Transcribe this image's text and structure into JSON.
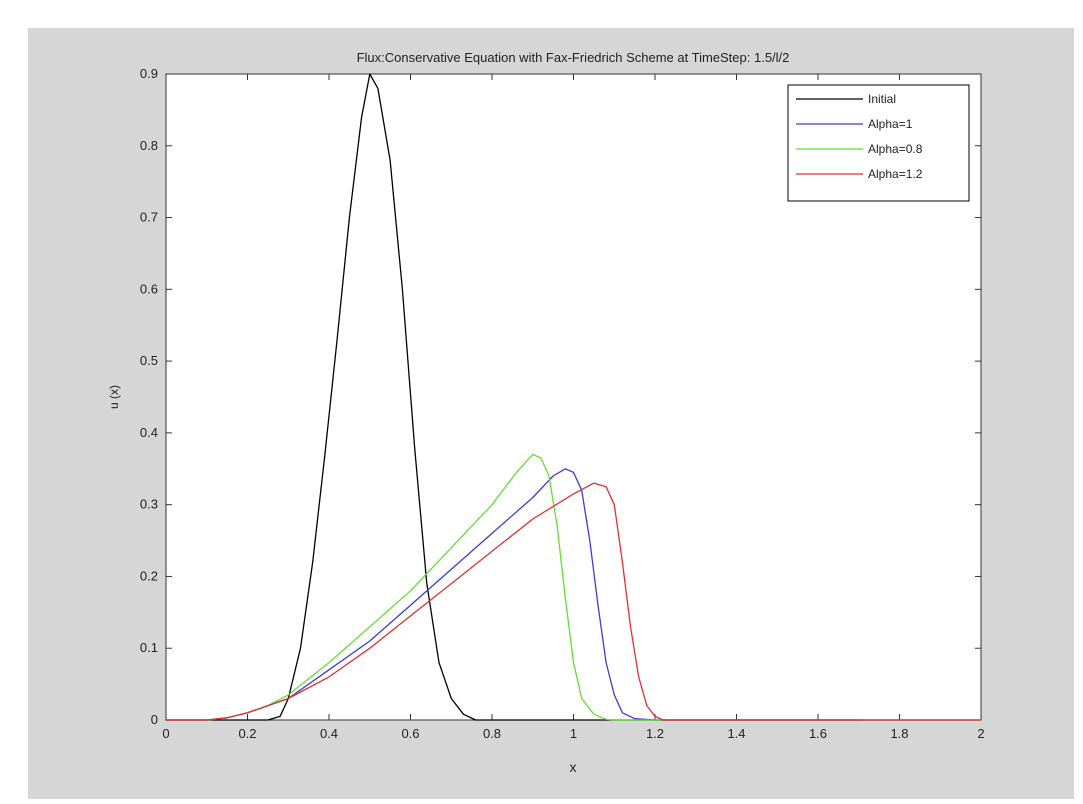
{
  "chart_data": {
    "type": "line",
    "title": "Flux:Conservative Equation with Fax-Friedrich Scheme at TimeStep: 1.5/l/2",
    "xlabel": "x",
    "ylabel": "u (x)",
    "xlim": [
      0,
      2
    ],
    "ylim": [
      0,
      0.9
    ],
    "xticks": [
      "0",
      "0.2",
      "0.4",
      "0.6",
      "0.8",
      "1",
      "1.2",
      "1.4",
      "1.6",
      "1.8",
      "2"
    ],
    "yticks": [
      "0",
      "0.1",
      "0.2",
      "0.3",
      "0.4",
      "0.5",
      "0.6",
      "0.7",
      "0.8",
      "0.9"
    ],
    "grid": false,
    "legend_position": "top-right",
    "series": [
      {
        "name": "Initial",
        "color": "#000000",
        "points": [
          [
            0,
            0
          ],
          [
            0.25,
            0
          ],
          [
            0.28,
            0.005
          ],
          [
            0.3,
            0.03
          ],
          [
            0.33,
            0.1
          ],
          [
            0.36,
            0.22
          ],
          [
            0.39,
            0.37
          ],
          [
            0.42,
            0.53
          ],
          [
            0.45,
            0.7
          ],
          [
            0.48,
            0.84
          ],
          [
            0.5,
            0.9
          ],
          [
            0.52,
            0.88
          ],
          [
            0.55,
            0.78
          ],
          [
            0.58,
            0.6
          ],
          [
            0.61,
            0.38
          ],
          [
            0.64,
            0.19
          ],
          [
            0.67,
            0.08
          ],
          [
            0.7,
            0.03
          ],
          [
            0.73,
            0.008
          ],
          [
            0.76,
            0
          ],
          [
            1.71,
            0
          ]
        ]
      },
      {
        "name": "Alpha=1",
        "color": "#3b3bd6",
        "points": [
          [
            0,
            0
          ],
          [
            0.1,
            0
          ],
          [
            0.15,
            0.003
          ],
          [
            0.2,
            0.01
          ],
          [
            0.25,
            0.02
          ],
          [
            0.3,
            0.03
          ],
          [
            0.4,
            0.07
          ],
          [
            0.5,
            0.11
          ],
          [
            0.6,
            0.16
          ],
          [
            0.7,
            0.21
          ],
          [
            0.8,
            0.26
          ],
          [
            0.9,
            0.31
          ],
          [
            0.95,
            0.34
          ],
          [
            0.98,
            0.35
          ],
          [
            1.0,
            0.345
          ],
          [
            1.02,
            0.32
          ],
          [
            1.04,
            0.25
          ],
          [
            1.06,
            0.16
          ],
          [
            1.08,
            0.08
          ],
          [
            1.1,
            0.035
          ],
          [
            1.12,
            0.01
          ],
          [
            1.15,
            0.002
          ],
          [
            1.2,
            0
          ],
          [
            2,
            0
          ]
        ]
      },
      {
        "name": "Alpha=0.8",
        "color": "#66dd33",
        "points": [
          [
            0,
            0
          ],
          [
            0.1,
            0
          ],
          [
            0.15,
            0.003
          ],
          [
            0.2,
            0.01
          ],
          [
            0.25,
            0.02
          ],
          [
            0.3,
            0.035
          ],
          [
            0.4,
            0.08
          ],
          [
            0.5,
            0.13
          ],
          [
            0.6,
            0.18
          ],
          [
            0.7,
            0.24
          ],
          [
            0.8,
            0.3
          ],
          [
            0.86,
            0.345
          ],
          [
            0.9,
            0.37
          ],
          [
            0.92,
            0.365
          ],
          [
            0.94,
            0.34
          ],
          [
            0.96,
            0.27
          ],
          [
            0.98,
            0.17
          ],
          [
            1.0,
            0.08
          ],
          [
            1.02,
            0.03
          ],
          [
            1.05,
            0.008
          ],
          [
            1.08,
            0.001
          ],
          [
            1.1,
            0
          ],
          [
            2,
            0
          ]
        ]
      },
      {
        "name": "Alpha=1.2",
        "color": "#e03030",
        "points": [
          [
            0,
            0
          ],
          [
            0.1,
            0
          ],
          [
            0.15,
            0.003
          ],
          [
            0.2,
            0.01
          ],
          [
            0.25,
            0.02
          ],
          [
            0.3,
            0.03
          ],
          [
            0.4,
            0.06
          ],
          [
            0.5,
            0.1
          ],
          [
            0.6,
            0.145
          ],
          [
            0.7,
            0.19
          ],
          [
            0.8,
            0.235
          ],
          [
            0.9,
            0.28
          ],
          [
            1.0,
            0.315
          ],
          [
            1.05,
            0.33
          ],
          [
            1.08,
            0.325
          ],
          [
            1.1,
            0.3
          ],
          [
            1.12,
            0.22
          ],
          [
            1.14,
            0.13
          ],
          [
            1.16,
            0.06
          ],
          [
            1.18,
            0.02
          ],
          [
            1.2,
            0.005
          ],
          [
            1.22,
            0
          ],
          [
            2,
            0
          ]
        ]
      }
    ]
  }
}
